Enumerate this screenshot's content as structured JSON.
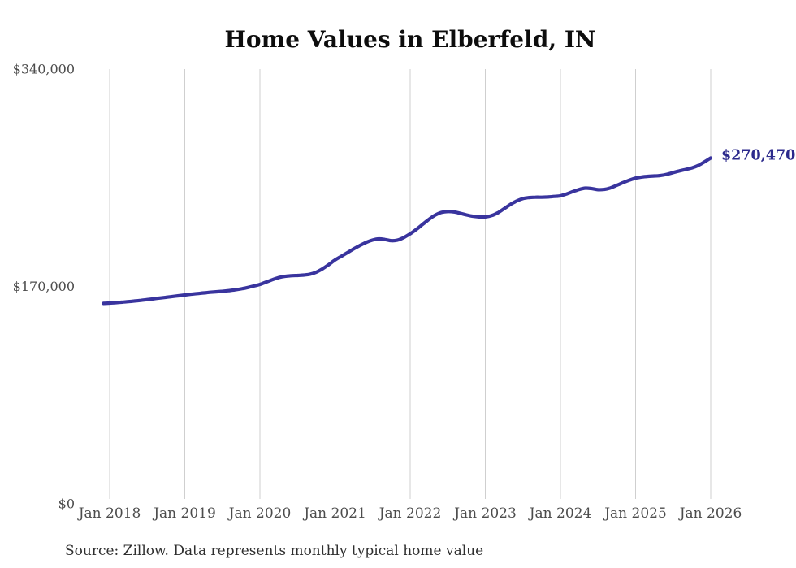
{
  "title": "Home Values in Elberfeld, IN",
  "source_note": "Source: Zillow. Data represents monthly typical home value",
  "colors": {
    "line": "#39349e",
    "end_label": "#2c2a8c",
    "grid": "#cfcfcf",
    "axis_text": "#4c4c4c",
    "title_text": "#0d0d0d",
    "source_text": "#2f2f2f",
    "background": "#ffffff"
  },
  "chart_data": {
    "type": "line",
    "title": "Home Values in Elberfeld, IN",
    "xlabel": "",
    "ylabel": "",
    "ylim": [
      0,
      340000
    ],
    "yticks": [
      0,
      170000,
      340000
    ],
    "ytick_labels": [
      "$0",
      "$170,000",
      "$340,000"
    ],
    "xtick_labels": [
      "Jan 2018",
      "Jan 2019",
      "Jan 2020",
      "Jan 2021",
      "Jan 2022",
      "Jan 2023",
      "Jan 2024",
      "Jan 2025",
      "Jan 2026"
    ],
    "grid": "vertical-only",
    "legend": "none",
    "last_value_label": "$270,470",
    "last_value": 270470,
    "x": [
      "2017-12",
      "2018-01",
      "2018-02",
      "2018-03",
      "2018-04",
      "2018-05",
      "2018-06",
      "2018-07",
      "2018-08",
      "2018-09",
      "2018-10",
      "2018-11",
      "2018-12",
      "2019-01",
      "2019-02",
      "2019-03",
      "2019-04",
      "2019-05",
      "2019-06",
      "2019-07",
      "2019-08",
      "2019-09",
      "2019-10",
      "2019-11",
      "2019-12",
      "2020-01",
      "2020-02",
      "2020-03",
      "2020-04",
      "2020-05",
      "2020-06",
      "2020-07",
      "2020-08",
      "2020-09",
      "2020-10",
      "2020-11",
      "2020-12",
      "2021-01",
      "2021-02",
      "2021-03",
      "2021-04",
      "2021-05",
      "2021-06",
      "2021-07",
      "2021-08",
      "2021-09",
      "2021-10",
      "2021-11",
      "2021-12",
      "2022-01",
      "2022-02",
      "2022-03",
      "2022-04",
      "2022-05",
      "2022-06",
      "2022-07",
      "2022-08",
      "2022-09",
      "2022-10",
      "2022-11",
      "2022-12",
      "2023-01",
      "2023-02",
      "2023-03",
      "2023-04",
      "2023-05",
      "2023-06",
      "2023-07",
      "2023-08",
      "2023-09",
      "2023-10",
      "2023-11",
      "2023-12",
      "2024-01",
      "2024-02",
      "2024-03",
      "2024-04",
      "2024-05",
      "2024-06",
      "2024-07",
      "2024-08",
      "2024-09",
      "2024-10",
      "2024-11",
      "2024-12",
      "2025-01",
      "2025-02",
      "2025-03",
      "2025-04",
      "2025-05",
      "2025-06",
      "2025-07",
      "2025-08",
      "2025-09",
      "2025-10",
      "2025-11",
      "2025-12",
      "2026-01"
    ],
    "values": [
      156700,
      157000,
      157300,
      157700,
      158100,
      158600,
      159100,
      159700,
      160300,
      160900,
      161500,
      162100,
      162700,
      163300,
      163900,
      164400,
      164900,
      165400,
      165800,
      166200,
      166700,
      167300,
      168100,
      169100,
      170300,
      171600,
      173400,
      175300,
      176900,
      177900,
      178400,
      178600,
      178900,
      179600,
      181200,
      183800,
      187100,
      190700,
      193600,
      196500,
      199400,
      202100,
      204500,
      206300,
      207200,
      206700,
      205800,
      206300,
      208300,
      211200,
      214700,
      218600,
      222500,
      225800,
      227900,
      228600,
      228300,
      227200,
      225900,
      224900,
      224400,
      224400,
      225400,
      227600,
      230800,
      234100,
      236800,
      238700,
      239500,
      239800,
      239800,
      240000,
      240400,
      240900,
      242400,
      244200,
      245900,
      246900,
      246500,
      245700,
      245900,
      247100,
      249100,
      251200,
      253100,
      254700,
      255600,
      256100,
      256400,
      256800,
      257700,
      259100,
      260400,
      261500,
      262700,
      264600,
      267400,
      270470
    ]
  }
}
